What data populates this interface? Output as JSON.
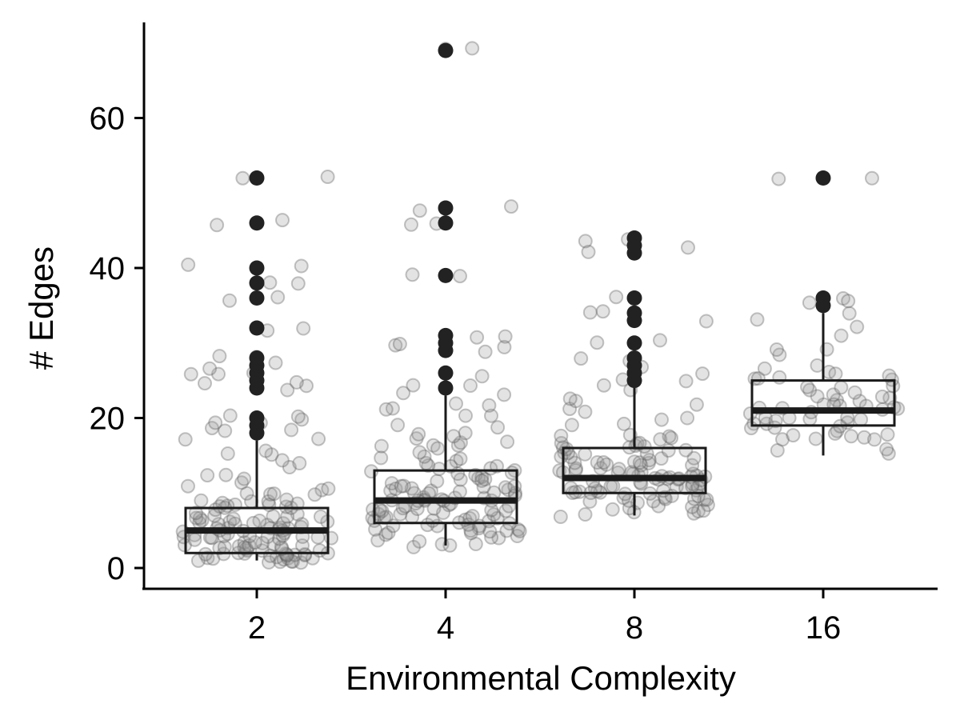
{
  "chart_data": {
    "type": "box",
    "xlabel": "Environmental Complexity",
    "ylabel": "# Edges",
    "categories": [
      "2",
      "4",
      "8",
      "16"
    ],
    "yticks": [
      0,
      20,
      40,
      60
    ],
    "ylim": [
      -3,
      73
    ],
    "grid": false,
    "legend": "none",
    "colors": {
      "axis": "#000000",
      "box": "#1a1a1a",
      "outlier": "#222222",
      "jitter": "#9a9a9a"
    },
    "boxes": [
      {
        "category": "2",
        "q1": 2,
        "median": 5,
        "q3": 8,
        "whisker_low": 1,
        "whisker_high": 17,
        "outliers": [
          18,
          19,
          20,
          24,
          25,
          26,
          27,
          28,
          32,
          36,
          38,
          40,
          46,
          52
        ]
      },
      {
        "category": "4",
        "q1": 6,
        "median": 9,
        "q3": 13,
        "whisker_low": 3,
        "whisker_high": 23,
        "outliers": [
          24,
          26,
          29,
          30,
          31,
          39,
          46,
          48,
          69
        ]
      },
      {
        "category": "8",
        "q1": 10,
        "median": 12,
        "q3": 16,
        "whisker_low": 7,
        "whisker_high": 24,
        "outliers": [
          25,
          26,
          27,
          28,
          30,
          33,
          34,
          36,
          42,
          43,
          44
        ]
      },
      {
        "category": "16",
        "q1": 19,
        "median": 21,
        "q3": 25,
        "whisker_low": 15,
        "whisker_high": 34,
        "outliers": [
          35,
          36,
          52
        ]
      }
    ],
    "points": [
      {
        "category": "2",
        "values": [
          1,
          1,
          1,
          1,
          1,
          1,
          1,
          1,
          1,
          1,
          1,
          1,
          2,
          2,
          2,
          2,
          2,
          2,
          2,
          2,
          2,
          2,
          2,
          2,
          2,
          2,
          2,
          3,
          3,
          3,
          3,
          3,
          3,
          3,
          3,
          3,
          3,
          3,
          3,
          3,
          3,
          4,
          4,
          4,
          4,
          4,
          4,
          4,
          4,
          4,
          4,
          4,
          4,
          4,
          5,
          5,
          5,
          5,
          5,
          5,
          5,
          5,
          5,
          5,
          5,
          5,
          5,
          6,
          6,
          6,
          6,
          6,
          6,
          6,
          6,
          6,
          6,
          6,
          7,
          7,
          7,
          7,
          7,
          7,
          7,
          7,
          7,
          8,
          8,
          8,
          8,
          8,
          8,
          8,
          8,
          9,
          9,
          9,
          9,
          9,
          9,
          10,
          10,
          10,
          10,
          10,
          11,
          11,
          11,
          12,
          12,
          12,
          13,
          14,
          14,
          15,
          15,
          16,
          17,
          17,
          18,
          18,
          19,
          19,
          19,
          20,
          20,
          20,
          24,
          24,
          25,
          25,
          26,
          26,
          26,
          27,
          27,
          28,
          28,
          32,
          32,
          36,
          36,
          38,
          38,
          40,
          40,
          46,
          46,
          52,
          52
        ]
      },
      {
        "category": "4",
        "values": [
          3,
          3,
          3,
          3,
          4,
          4,
          4,
          4,
          4,
          4,
          5,
          5,
          5,
          5,
          5,
          5,
          5,
          5,
          5,
          6,
          6,
          6,
          6,
          6,
          6,
          6,
          6,
          6,
          6,
          6,
          7,
          7,
          7,
          7,
          7,
          7,
          7,
          7,
          7,
          7,
          7,
          8,
          8,
          8,
          8,
          8,
          8,
          8,
          8,
          8,
          8,
          8,
          9,
          9,
          9,
          9,
          9,
          9,
          9,
          9,
          9,
          9,
          9,
          9,
          10,
          10,
          10,
          10,
          10,
          10,
          10,
          10,
          10,
          11,
          11,
          11,
          11,
          11,
          11,
          11,
          11,
          12,
          12,
          12,
          12,
          12,
          12,
          12,
          13,
          13,
          13,
          13,
          13,
          13,
          14,
          14,
          14,
          14,
          14,
          15,
          15,
          15,
          15,
          16,
          16,
          16,
          16,
          17,
          17,
          17,
          18,
          18,
          18,
          19,
          19,
          20,
          20,
          21,
          21,
          22,
          22,
          23,
          23,
          24,
          24,
          26,
          29,
          29,
          30,
          30,
          31,
          31,
          39,
          39,
          46,
          46,
          48,
          48,
          69,
          69
        ]
      },
      {
        "category": "8",
        "values": [
          7,
          7,
          7,
          7,
          8,
          8,
          8,
          8,
          8,
          8,
          8,
          9,
          9,
          9,
          9,
          9,
          9,
          9,
          9,
          9,
          9,
          10,
          10,
          10,
          10,
          10,
          10,
          10,
          10,
          10,
          10,
          10,
          10,
          11,
          11,
          11,
          11,
          11,
          11,
          11,
          11,
          11,
          11,
          11,
          11,
          12,
          12,
          12,
          12,
          12,
          12,
          12,
          12,
          12,
          12,
          12,
          12,
          12,
          13,
          13,
          13,
          13,
          13,
          13,
          13,
          13,
          13,
          13,
          13,
          14,
          14,
          14,
          14,
          14,
          14,
          14,
          14,
          14,
          14,
          15,
          15,
          15,
          15,
          15,
          15,
          15,
          15,
          16,
          16,
          16,
          16,
          16,
          16,
          16,
          17,
          17,
          17,
          17,
          17,
          18,
          18,
          18,
          19,
          19,
          20,
          20,
          21,
          21,
          22,
          22,
          23,
          24,
          24,
          25,
          25,
          26,
          27,
          28,
          28,
          30,
          30,
          33,
          34,
          34,
          36,
          42,
          43,
          44,
          44
        ]
      },
      {
        "category": "16",
        "values": [
          15,
          16,
          16,
          17,
          17,
          17,
          17,
          18,
          18,
          18,
          18,
          18,
          19,
          19,
          19,
          19,
          19,
          19,
          20,
          20,
          20,
          20,
          20,
          20,
          21,
          21,
          21,
          21,
          21,
          21,
          21,
          22,
          22,
          22,
          22,
          22,
          22,
          23,
          23,
          23,
          23,
          23,
          24,
          24,
          24,
          24,
          25,
          25,
          25,
          25,
          26,
          26,
          26,
          27,
          27,
          28,
          29,
          29,
          31,
          32,
          33,
          34,
          35,
          36,
          36,
          52,
          52
        ]
      }
    ]
  }
}
